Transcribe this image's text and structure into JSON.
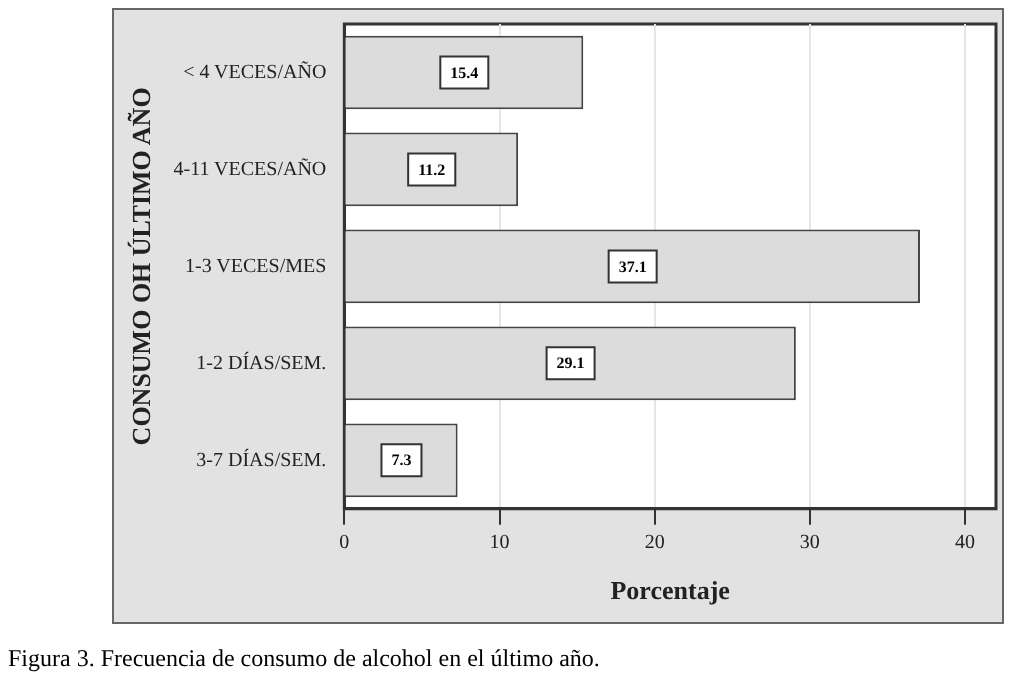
{
  "chart_data": {
    "type": "bar",
    "orientation": "horizontal",
    "xlabel": "Porcentaje",
    "ylabel": "CONSUMO OH ÚLTIMO AÑO",
    "categories": [
      "< 4 VECES/AÑO",
      "4-11 VECES/AÑO",
      "1-3 VECES/MES",
      "1-2 DÍAS/SEM.",
      "3-7 DÍAS/SEM."
    ],
    "values": [
      15.4,
      11.2,
      37.1,
      29.1,
      7.3
    ],
    "color": "#dcdcdc",
    "xlim": [
      0,
      42
    ],
    "xticks": [
      0,
      10,
      20,
      30,
      40
    ],
    "grid": "x",
    "data_labels": true,
    "legend": false,
    "annotations": [
      "Figura 3. Frecuencia de consumo de alcohol en el último año."
    ]
  }
}
